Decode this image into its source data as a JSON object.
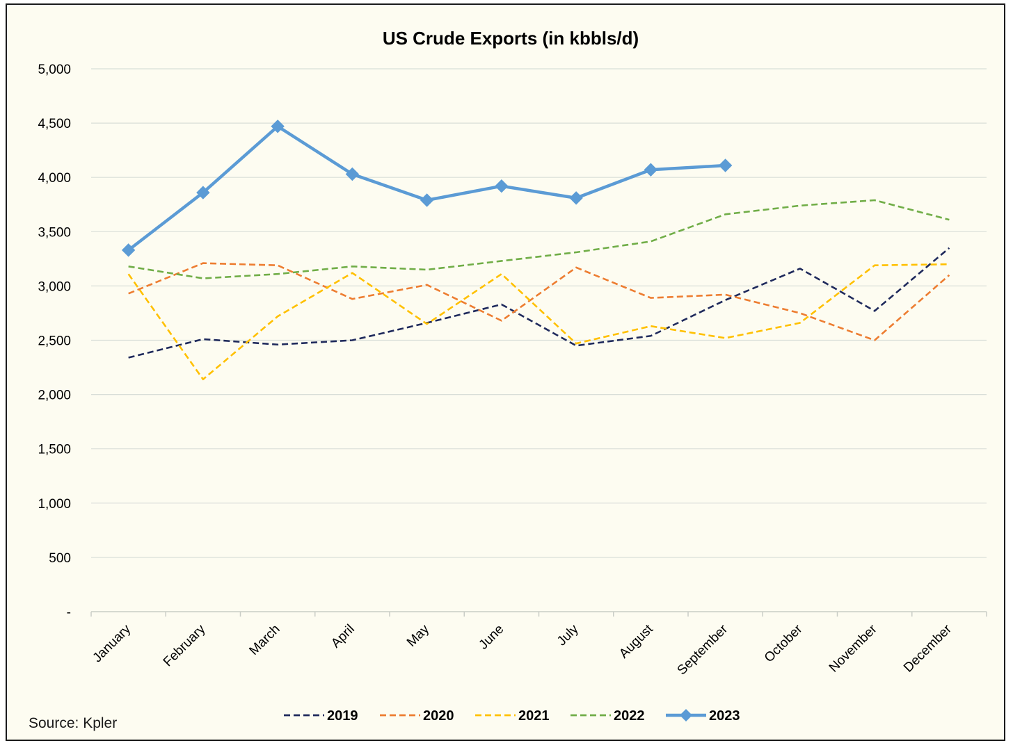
{
  "chart_data": {
    "type": "line",
    "title": "US Crude Exports (in kbbls/d)",
    "xlabel": "",
    "ylabel": "",
    "categories": [
      "January",
      "February",
      "March",
      "April",
      "May",
      "June",
      "July",
      "August",
      "September",
      "October",
      "November",
      "December"
    ],
    "ylim": [
      0,
      5000
    ],
    "yticks": [
      0,
      500,
      1000,
      1500,
      2000,
      2500,
      3000,
      3500,
      4000,
      4500,
      5000
    ],
    "ytick_labels": [
      "-",
      "500",
      "1,000",
      "1,500",
      "2,000",
      "2,500",
      "3,000",
      "3,500",
      "4,000",
      "4,500",
      "5,000"
    ],
    "grid": "horizontal",
    "legend_position": "bottom",
    "series": [
      {
        "name": "2019",
        "color": "#1f2a5c",
        "style": "dashed",
        "values": [
          2340,
          2510,
          2460,
          2500,
          2660,
          2830,
          2450,
          2540,
          2870,
          3160,
          2770,
          3350
        ]
      },
      {
        "name": "2020",
        "color": "#ed7d31",
        "style": "dashed",
        "values": [
          2930,
          3210,
          3190,
          2880,
          3010,
          2680,
          3170,
          2890,
          2920,
          2750,
          2500,
          3100
        ]
      },
      {
        "name": "2021",
        "color": "#ffc000",
        "style": "dashed",
        "values": [
          3110,
          2140,
          2720,
          3120,
          2650,
          3110,
          2470,
          2630,
          2520,
          2660,
          3190,
          3200
        ]
      },
      {
        "name": "2022",
        "color": "#70ad47",
        "style": "dashed",
        "values": [
          3180,
          3070,
          3110,
          3180,
          3150,
          3230,
          3310,
          3410,
          3660,
          3740,
          3790,
          3610
        ]
      },
      {
        "name": "2023",
        "color": "#5b9bd5",
        "style": "solid",
        "marker": "diamond",
        "values": [
          3330,
          3860,
          4470,
          4030,
          3790,
          3920,
          3810,
          4070,
          4110,
          null,
          null,
          null
        ]
      }
    ]
  },
  "source": "Source: Kpler"
}
